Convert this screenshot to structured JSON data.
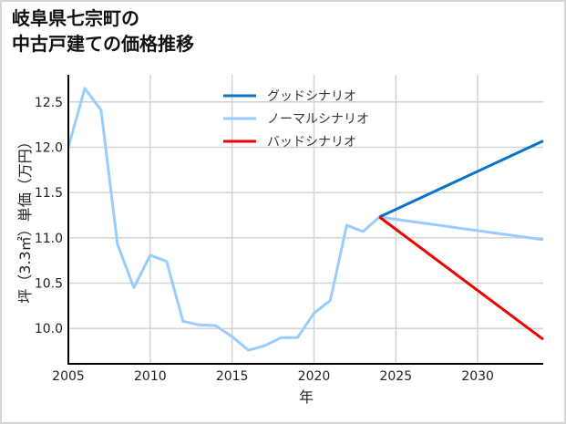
{
  "title": "岐阜県七宗町の\n中古戸建ての価格推移",
  "chart_data": {
    "type": "line",
    "title": "岐阜県七宗町の中古戸建ての価格推移",
    "xlabel": "年",
    "ylabel": "坪（3.3㎡）単価（万円）",
    "xlim": [
      2005,
      2034
    ],
    "ylim": [
      9.61,
      12.8
    ],
    "x_ticks": [
      2005,
      2010,
      2015,
      2020,
      2025,
      2030
    ],
    "y_ticks": [
      10.0,
      10.5,
      11.0,
      11.5,
      12.0,
      12.5
    ],
    "y_tick_labels": [
      "10.0",
      "10.5",
      "11.0",
      "11.5",
      "12.0",
      "12.5"
    ],
    "grid": true,
    "legend_position": "upper center",
    "series": [
      {
        "name": "グッドシナリオ",
        "color": "#0a74c8",
        "x": [
          2024,
          2034
        ],
        "values": [
          11.23,
          12.07
        ]
      },
      {
        "name": "ノーマルシナリオ",
        "color": "#99ccff",
        "x": [
          2005,
          2006,
          2007,
          2008,
          2009,
          2010,
          2011,
          2012,
          2013,
          2014,
          2015,
          2016,
          2017,
          2018,
          2019,
          2020,
          2021,
          2022,
          2023,
          2024,
          2034
        ],
        "values": [
          12.0,
          12.65,
          12.41,
          10.93,
          10.45,
          10.81,
          10.74,
          10.08,
          10.04,
          10.03,
          9.91,
          9.76,
          9.81,
          9.9,
          9.9,
          10.17,
          10.31,
          11.14,
          11.07,
          11.23,
          10.98
        ]
      },
      {
        "name": "バッドシナリオ",
        "color": "#ee0000",
        "x": [
          2024,
          2034
        ],
        "values": [
          11.23,
          9.88
        ]
      }
    ]
  }
}
